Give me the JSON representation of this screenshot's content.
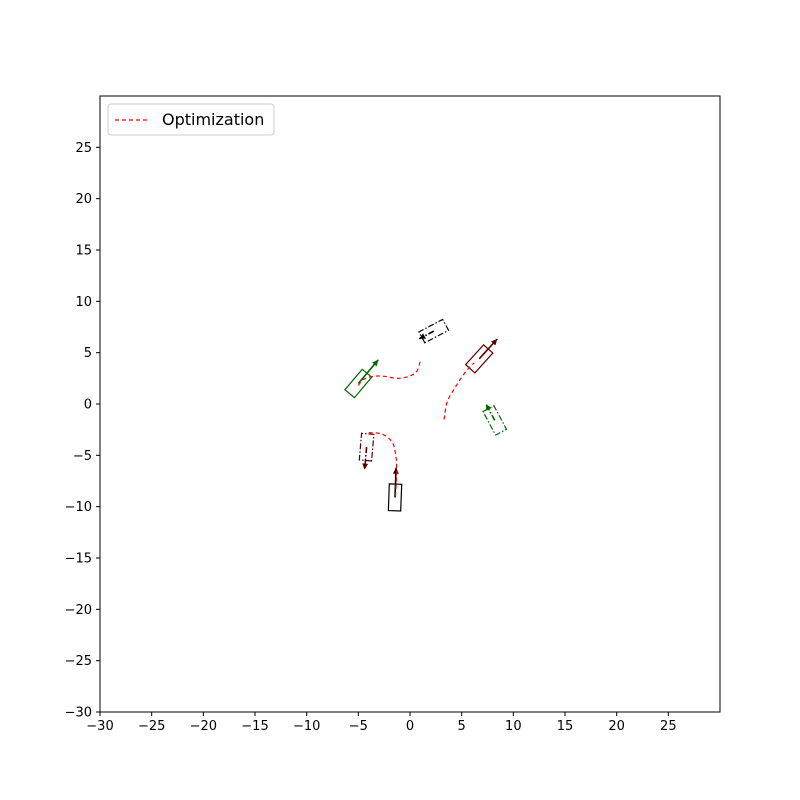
{
  "chart_data": {
    "type": "line",
    "title": "",
    "xlabel": "",
    "ylabel": "",
    "xlim": [
      -30,
      30
    ],
    "ylim": [
      -30,
      30
    ],
    "xticks": [
      -30,
      -25,
      -20,
      -15,
      -10,
      -5,
      0,
      5,
      10,
      15,
      20,
      25
    ],
    "yticks": [
      -30,
      -25,
      -20,
      -15,
      -10,
      -5,
      0,
      5,
      10,
      15,
      20,
      25
    ],
    "grid": false,
    "legend": {
      "placement": "top-left",
      "entries": [
        {
          "label": "Optimization",
          "style": "dashed",
          "color": "#ff0000"
        }
      ]
    },
    "series": [
      {
        "name": "Optimization",
        "color": "#ff0000",
        "style": "dashed",
        "paths": [
          {
            "x": [
              -5.0,
              -4.5,
              -3.5,
              -2.5,
              -1.0,
              0.5,
              1.0
            ],
            "y": [
              1.8,
              2.4,
              2.7,
              2.7,
              2.5,
              3.0,
              4.2
            ]
          },
          {
            "x": [
              3.3,
              3.6,
              4.3,
              5.0,
              5.6,
              6.2
            ],
            "y": [
              -1.5,
              0.2,
              1.5,
              2.6,
              3.4,
              4.0
            ]
          },
          {
            "x": [
              -4.0,
              -2.8,
              -1.8,
              -1.4,
              -1.3,
              -1.4
            ],
            "y": [
              -2.8,
              -2.9,
              -3.6,
              -4.8,
              -6.5,
              -9.0
            ]
          }
        ]
      }
    ],
    "vehicles": [
      {
        "cx": -5.0,
        "cy": 2.0,
        "length": 2.6,
        "width": 1.2,
        "heading_deg": 50,
        "color": "#006400",
        "style": "solid",
        "arrow_length": 3.0
      },
      {
        "cx": 6.7,
        "cy": 4.4,
        "length": 2.6,
        "width": 1.2,
        "heading_deg": 48,
        "color": "#5a0000",
        "style": "solid",
        "arrow_length": 2.6
      },
      {
        "cx": -1.45,
        "cy": -9.1,
        "length": 2.6,
        "width": 1.2,
        "heading_deg": 88,
        "color": "#000000",
        "style": "solid",
        "arrow_length": 2.9
      },
      {
        "cx": 2.3,
        "cy": 7.1,
        "length": 2.6,
        "width": 1.2,
        "heading_deg": 208,
        "color": "#000000",
        "style": "dashdot",
        "arrow_length": 1.6
      },
      {
        "cx": 8.2,
        "cy": -1.6,
        "length": 2.6,
        "width": 1.2,
        "heading_deg": 118,
        "color": "#006400",
        "style": "dashdot",
        "arrow_length": 1.8
      },
      {
        "cx": -4.2,
        "cy": -4.2,
        "length": 2.6,
        "width": 1.2,
        "heading_deg": 265,
        "color": "#5a0000",
        "style": "dashdot",
        "arrow_length": 2.2
      }
    ]
  }
}
